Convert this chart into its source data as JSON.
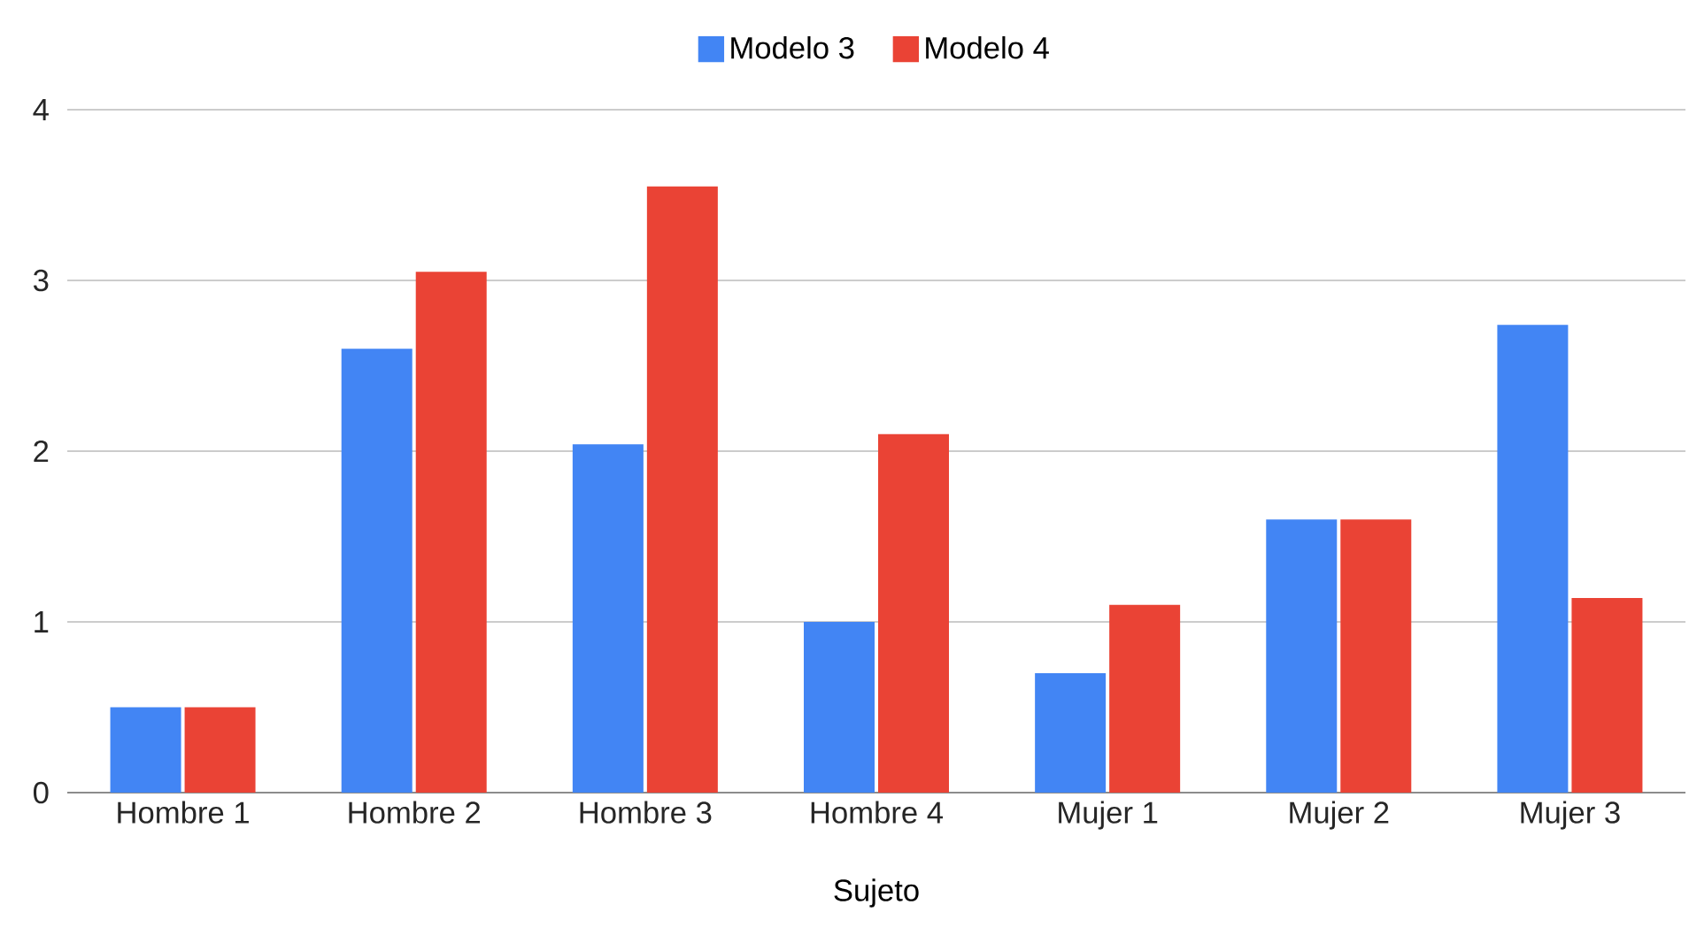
{
  "chart_data": {
    "type": "bar",
    "xlabel": "Sujeto",
    "categories": [
      "Hombre 1",
      "Hombre 2",
      "Hombre 3",
      "Hombre 4",
      "Mujer 1",
      "Mujer 2",
      "Mujer 3"
    ],
    "series": [
      {
        "name": "Modelo 3",
        "color": "#4285f4",
        "values": [
          0.5,
          2.6,
          2.04,
          1.0,
          0.7,
          1.6,
          2.74
        ]
      },
      {
        "name": "Modelo 4",
        "color": "#ea4335",
        "values": [
          0.5,
          3.05,
          3.55,
          2.1,
          1.1,
          1.6,
          1.14
        ]
      }
    ],
    "ylim": [
      0,
      4
    ],
    "yticks": [
      0,
      1,
      2,
      3,
      4
    ],
    "grid": "y",
    "legend": "top"
  }
}
